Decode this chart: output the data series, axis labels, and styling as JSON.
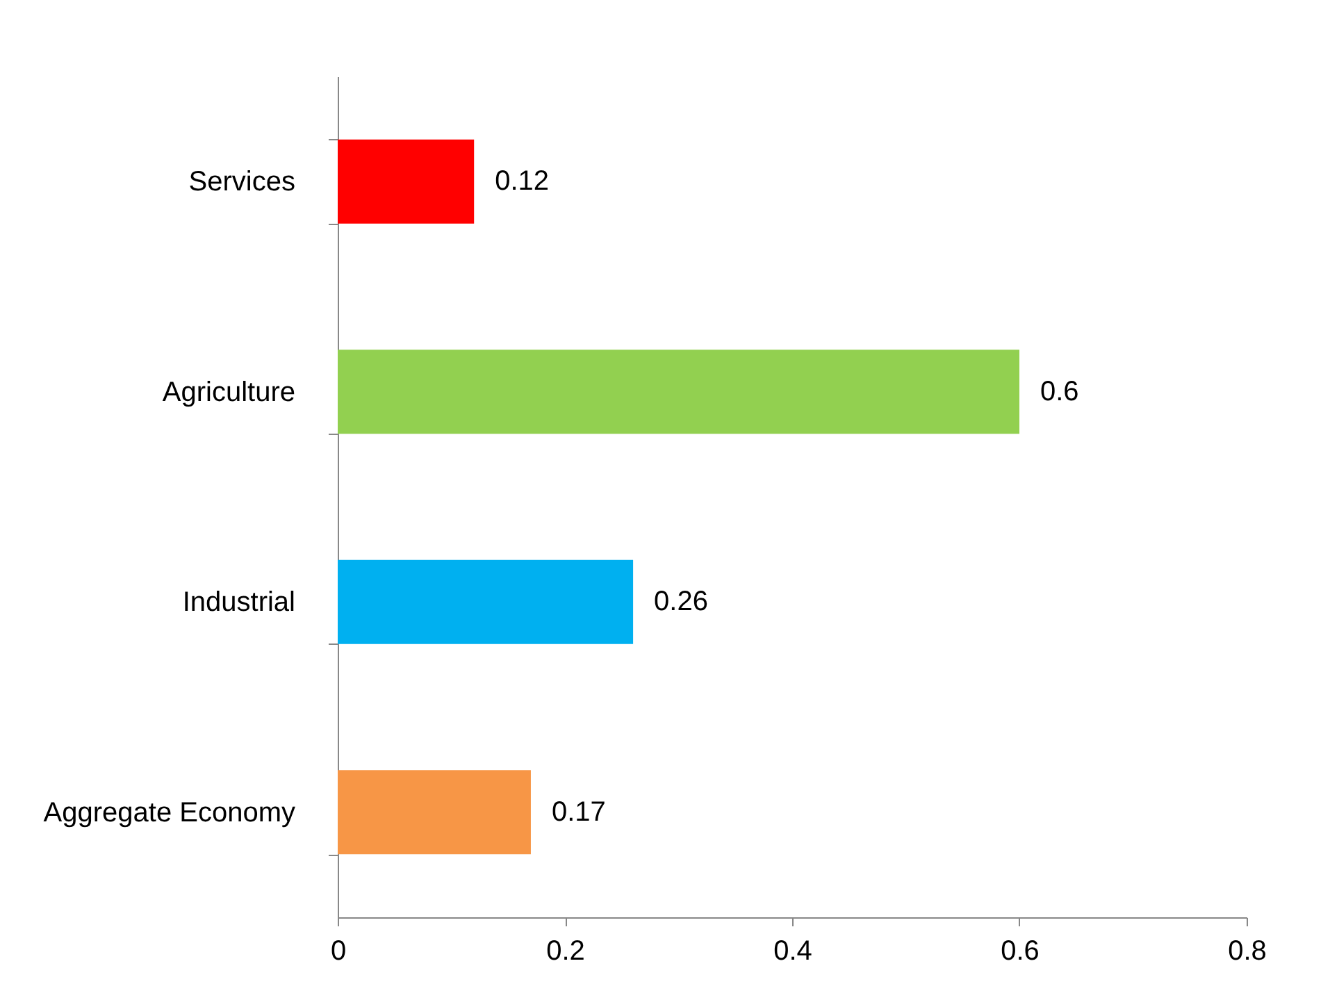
{
  "chart_data": {
    "type": "bar",
    "orientation": "horizontal",
    "categories": [
      "Services",
      "Agriculture",
      "Industrial",
      "Aggregate Economy"
    ],
    "values": [
      0.12,
      0.6,
      0.26,
      0.17
    ],
    "colors": [
      "#ff0000",
      "#92d050",
      "#00b0f0",
      "#f79646"
    ],
    "xlim": [
      0,
      0.8
    ],
    "xticks": [
      0,
      0.2,
      0.4,
      0.6,
      0.8
    ],
    "grid": false,
    "data_labels": true
  }
}
